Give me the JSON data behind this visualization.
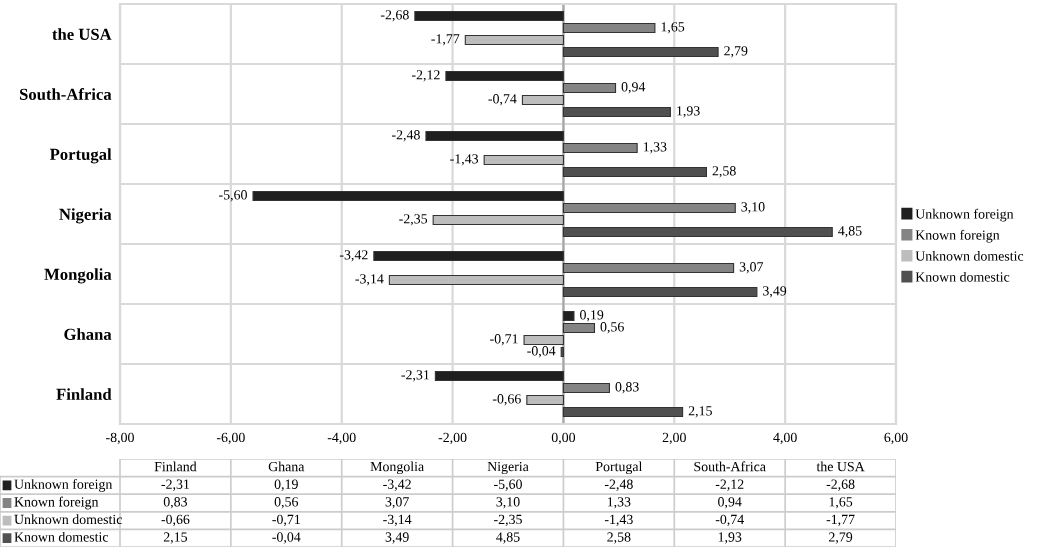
{
  "chart_data": {
    "type": "bar",
    "orientation": "horizontal",
    "categories": [
      "the USA",
      "South-Africa",
      "Portugal",
      "Nigeria",
      "Mongolia",
      "Ghana",
      "Finland"
    ],
    "series": [
      {
        "name": "Unknown foreign",
        "color": "#1f1f1f",
        "values": [
          -2.68,
          -2.12,
          -2.48,
          -5.6,
          -3.42,
          0.19,
          -2.31
        ],
        "value_labels": [
          "-2,68",
          "-2,12",
          "-2,48",
          "-5,60",
          "-3,42",
          "0,19",
          "-2,31"
        ]
      },
      {
        "name": "Known foreign",
        "color": "#848484",
        "values": [
          1.65,
          0.94,
          1.33,
          3.1,
          3.07,
          0.56,
          0.83
        ],
        "value_labels": [
          "1,65",
          "0,94",
          "1,33",
          "3,10",
          "3,07",
          "0,56",
          "0,83"
        ]
      },
      {
        "name": "Unknown domestic",
        "color": "#bdbdbd",
        "values": [
          -1.77,
          -0.74,
          -1.43,
          -2.35,
          -3.14,
          -0.71,
          -0.66
        ],
        "value_labels": [
          "-1,77",
          "-0,74",
          "-1,43",
          "-2,35",
          "-3,14",
          "-0,71",
          "-0,66"
        ]
      },
      {
        "name": "Known domestic",
        "color": "#505050",
        "values": [
          2.79,
          1.93,
          2.58,
          4.85,
          3.49,
          -0.04,
          2.15
        ],
        "value_labels": [
          "2,79",
          "1,93",
          "2,58",
          "4,85",
          "3,49",
          "-0,04",
          "2,15"
        ]
      }
    ],
    "xlim": [
      -8,
      6
    ],
    "xticks": [
      {
        "value": -8,
        "label": "-8,00"
      },
      {
        "value": -6,
        "label": "-6,00"
      },
      {
        "value": -4,
        "label": "-4,00"
      },
      {
        "value": -2,
        "label": "-2,00"
      },
      {
        "value": 0,
        "label": "0,00"
      },
      {
        "value": 2,
        "label": "2,00"
      },
      {
        "value": 4,
        "label": "4,00"
      },
      {
        "value": 6,
        "label": "6,00"
      }
    ],
    "grid": true,
    "legend": "right"
  }
}
